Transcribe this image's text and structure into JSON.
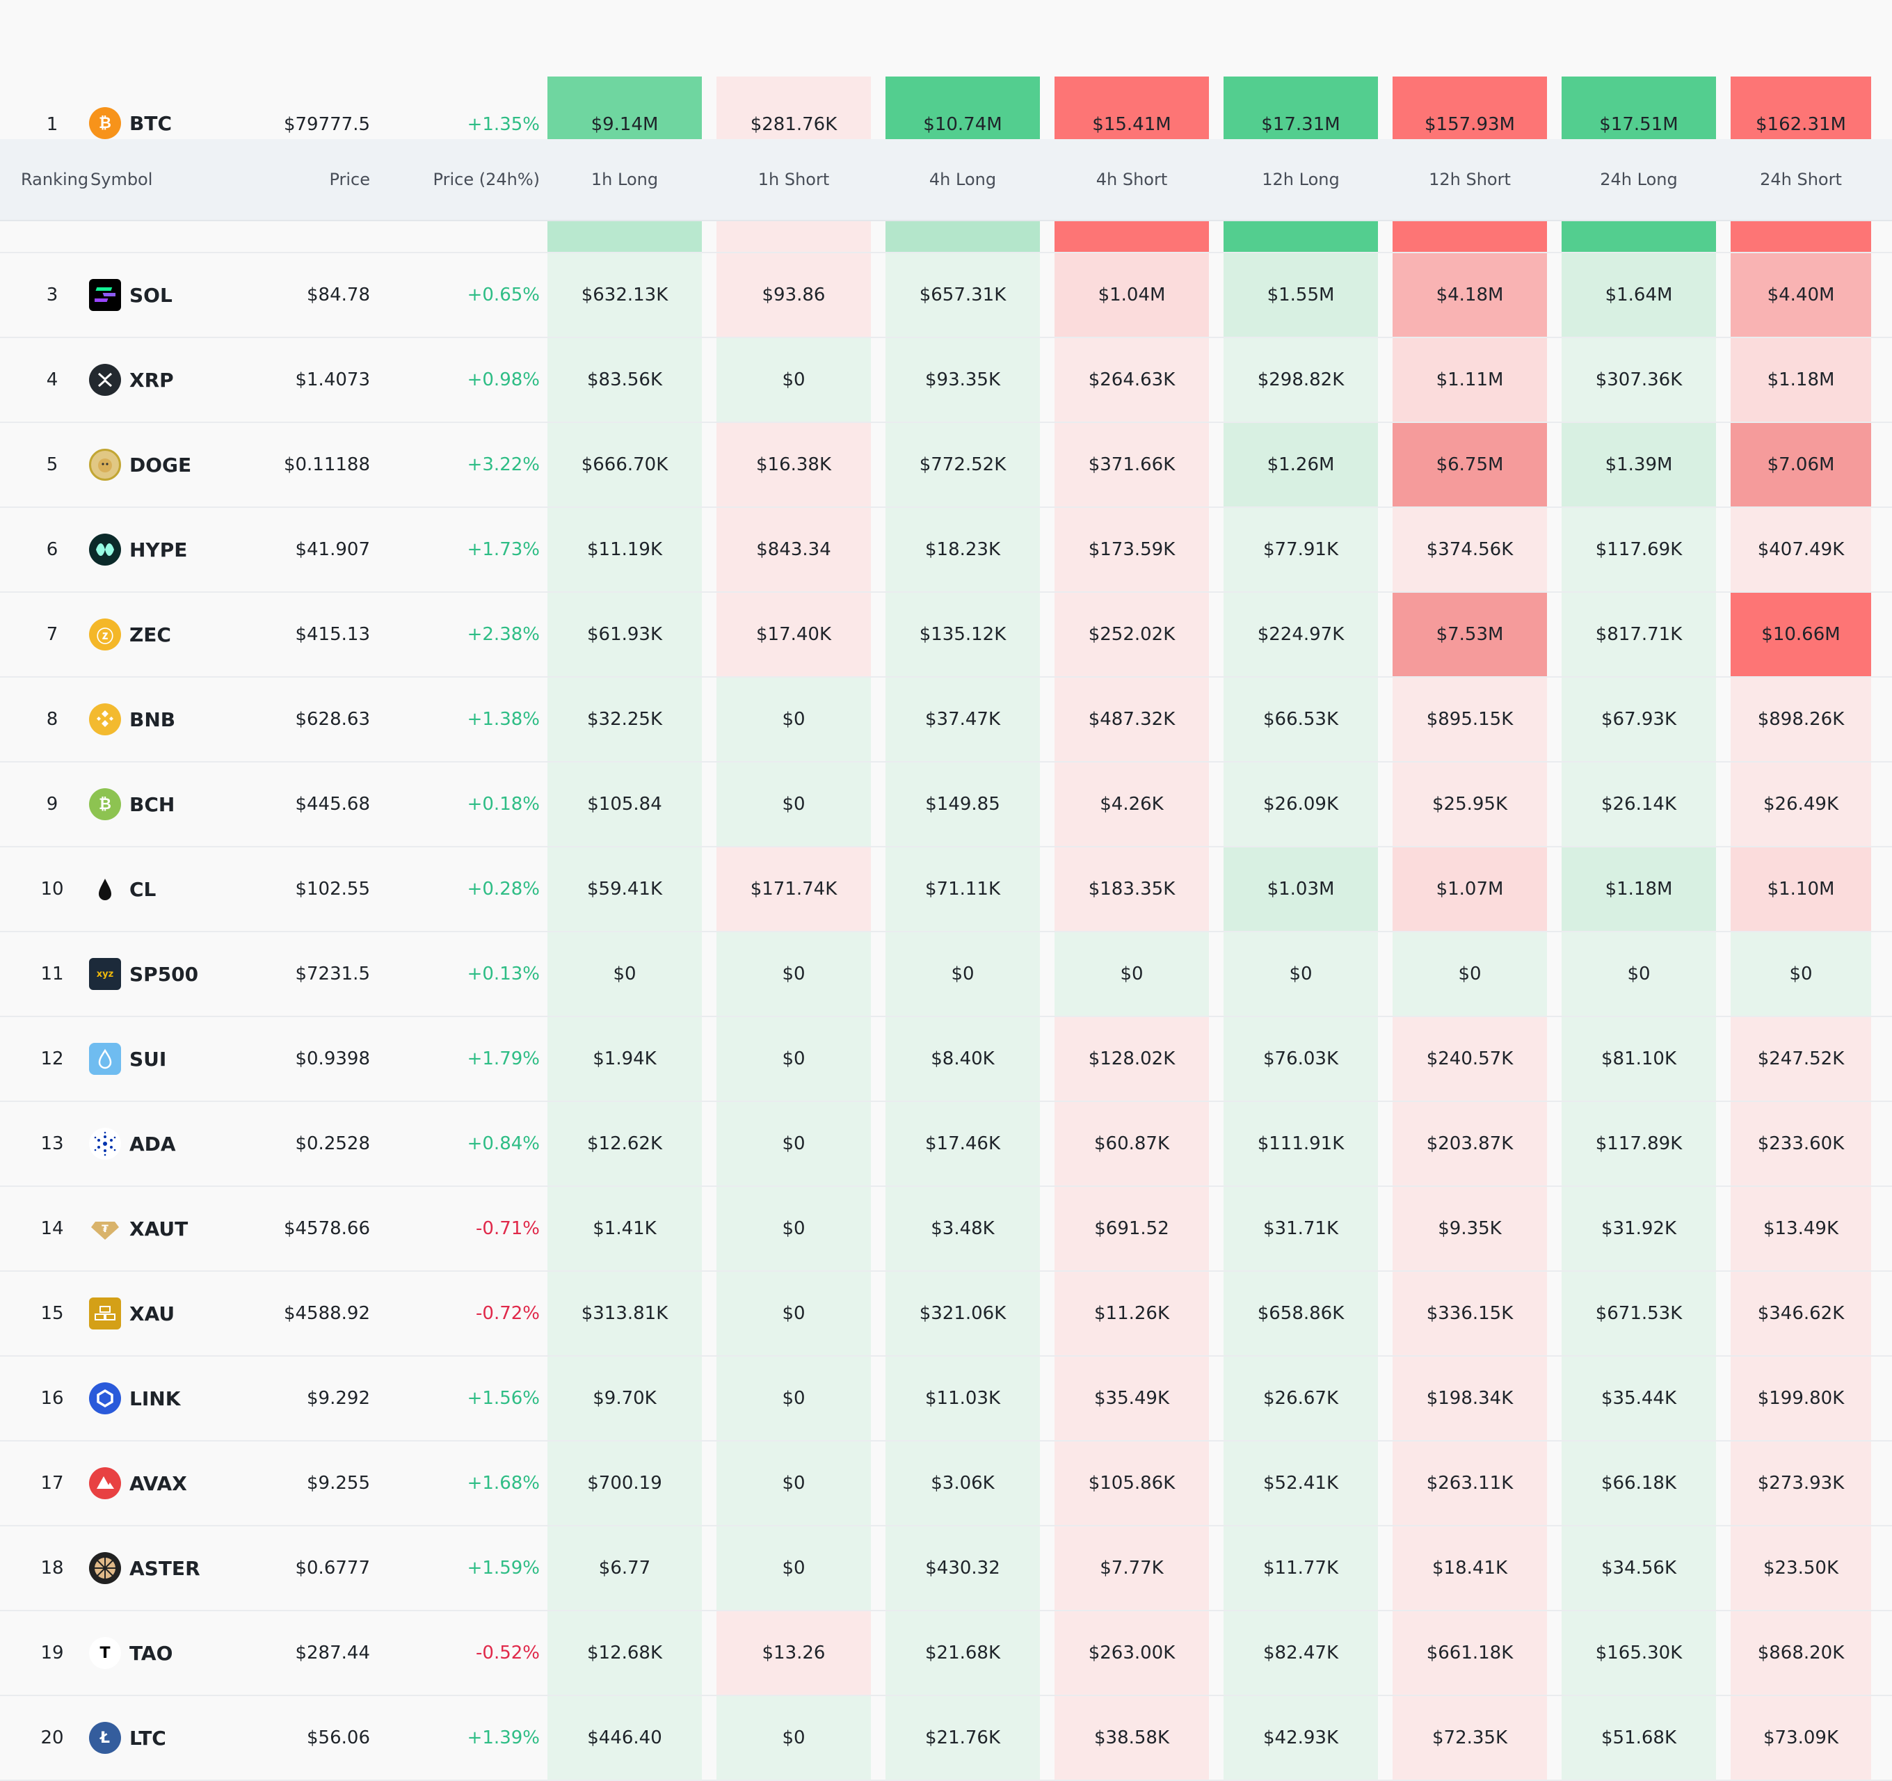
{
  "headers": {
    "ranking": "Ranking",
    "symbol": "Symbol",
    "price": "Price",
    "change": "Price (24h%)",
    "h1_long": "1h Long",
    "h1_short": "1h Short",
    "h4_long": "4h Long",
    "h4_short": "4h Short",
    "h12_long": "12h Long",
    "h12_short": "12h Short",
    "h24_long": "24h Long",
    "h24_short": "24h Short"
  },
  "colors": {
    "long_strong": "#53ce8f",
    "long_mid": "#b9e8cf",
    "long_light": "#e6f4ec",
    "short_strong": "#fd7575",
    "short_mid": "#f9b3b3",
    "short_light": "#fbe8e8"
  },
  "rows": [
    {
      "rank": "1",
      "symbol": "BTC",
      "icon": "bitcoin-icon",
      "price": "$79777.5",
      "change": "+1.35%",
      "values": [
        "$9.14M",
        "$281.76K",
        "$10.74M",
        "$15.41M",
        "$17.31M",
        "$157.93M",
        "$17.51M",
        "$162.31M"
      ]
    },
    {
      "rank": "3",
      "symbol": "SOL",
      "icon": "solana-icon",
      "price": "$84.78",
      "change": "+0.65%",
      "values": [
        "$632.13K",
        "$93.86",
        "$657.31K",
        "$1.04M",
        "$1.55M",
        "$4.18M",
        "$1.64M",
        "$4.40M"
      ]
    },
    {
      "rank": "4",
      "symbol": "XRP",
      "icon": "xrp-icon",
      "price": "$1.4073",
      "change": "+0.98%",
      "values": [
        "$83.56K",
        "$0",
        "$93.35K",
        "$264.63K",
        "$298.82K",
        "$1.11M",
        "$307.36K",
        "$1.18M"
      ]
    },
    {
      "rank": "5",
      "symbol": "DOGE",
      "icon": "doge-icon",
      "price": "$0.11188",
      "change": "+3.22%",
      "values": [
        "$666.70K",
        "$16.38K",
        "$772.52K",
        "$371.66K",
        "$1.26M",
        "$6.75M",
        "$1.39M",
        "$7.06M"
      ]
    },
    {
      "rank": "6",
      "symbol": "HYPE",
      "icon": "hype-icon",
      "price": "$41.907",
      "change": "+1.73%",
      "values": [
        "$11.19K",
        "$843.34",
        "$18.23K",
        "$173.59K",
        "$77.91K",
        "$374.56K",
        "$117.69K",
        "$407.49K"
      ]
    },
    {
      "rank": "7",
      "symbol": "ZEC",
      "icon": "zcash-icon",
      "price": "$415.13",
      "change": "+2.38%",
      "values": [
        "$61.93K",
        "$17.40K",
        "$135.12K",
        "$252.02K",
        "$224.97K",
        "$7.53M",
        "$817.71K",
        "$10.66M"
      ]
    },
    {
      "rank": "8",
      "symbol": "BNB",
      "icon": "bnb-icon",
      "price": "$628.63",
      "change": "+1.38%",
      "values": [
        "$32.25K",
        "$0",
        "$37.47K",
        "$487.32K",
        "$66.53K",
        "$895.15K",
        "$67.93K",
        "$898.26K"
      ]
    },
    {
      "rank": "9",
      "symbol": "BCH",
      "icon": "bitcoin-cash-icon",
      "price": "$445.68",
      "change": "+0.18%",
      "values": [
        "$105.84",
        "$0",
        "$149.85",
        "$4.26K",
        "$26.09K",
        "$25.95K",
        "$26.14K",
        "$26.49K"
      ]
    },
    {
      "rank": "10",
      "symbol": "CL",
      "icon": "oil-drop-icon",
      "price": "$102.55",
      "change": "+0.28%",
      "values": [
        "$59.41K",
        "$171.74K",
        "$71.11K",
        "$183.35K",
        "$1.03M",
        "$1.07M",
        "$1.18M",
        "$1.10M"
      ]
    },
    {
      "rank": "11",
      "symbol": "SP500",
      "icon": "sp500-icon",
      "icon_text": "xyz",
      "price": "$7231.5",
      "change": "+0.13%",
      "values": [
        "$0",
        "$0",
        "$0",
        "$0",
        "$0",
        "$0",
        "$0",
        "$0"
      ]
    },
    {
      "rank": "12",
      "symbol": "SUI",
      "icon": "sui-drop-icon",
      "price": "$0.9398",
      "change": "+1.79%",
      "values": [
        "$1.94K",
        "$0",
        "$8.40K",
        "$128.02K",
        "$76.03K",
        "$240.57K",
        "$81.10K",
        "$247.52K"
      ]
    },
    {
      "rank": "13",
      "symbol": "ADA",
      "icon": "cardano-icon",
      "price": "$0.2528",
      "change": "+0.84%",
      "values": [
        "$12.62K",
        "$0",
        "$17.46K",
        "$60.87K",
        "$111.91K",
        "$203.87K",
        "$117.89K",
        "$233.60K"
      ]
    },
    {
      "rank": "14",
      "symbol": "XAUT",
      "icon": "tether-gold-icon",
      "price": "$4578.66",
      "change": "-0.71%",
      "values": [
        "$1.41K",
        "$0",
        "$3.48K",
        "$691.52",
        "$31.71K",
        "$9.35K",
        "$31.92K",
        "$13.49K"
      ]
    },
    {
      "rank": "15",
      "symbol": "XAU",
      "icon": "gold-bars-icon",
      "price": "$4588.92",
      "change": "-0.72%",
      "values": [
        "$313.81K",
        "$0",
        "$321.06K",
        "$11.26K",
        "$658.86K",
        "$336.15K",
        "$671.53K",
        "$346.62K"
      ]
    },
    {
      "rank": "16",
      "symbol": "LINK",
      "icon": "chainlink-icon",
      "price": "$9.292",
      "change": "+1.56%",
      "values": [
        "$9.70K",
        "$0",
        "$11.03K",
        "$35.49K",
        "$26.67K",
        "$198.34K",
        "$35.44K",
        "$199.80K"
      ]
    },
    {
      "rank": "17",
      "symbol": "AVAX",
      "icon": "avalanche-icon",
      "price": "$9.255",
      "change": "+1.68%",
      "values": [
        "$700.19",
        "$0",
        "$3.06K",
        "$105.86K",
        "$52.41K",
        "$263.11K",
        "$66.18K",
        "$273.93K"
      ]
    },
    {
      "rank": "18",
      "symbol": "ASTER",
      "icon": "aster-icon",
      "price": "$0.6777",
      "change": "+1.59%",
      "values": [
        "$6.77",
        "$0",
        "$430.32",
        "$7.77K",
        "$11.77K",
        "$18.41K",
        "$34.56K",
        "$23.50K"
      ]
    },
    {
      "rank": "19",
      "symbol": "TAO",
      "icon": "bittensor-icon",
      "icon_text": "T",
      "price": "$287.44",
      "change": "-0.52%",
      "values": [
        "$12.68K",
        "$13.26",
        "$21.68K",
        "$263.00K",
        "$82.47K",
        "$661.18K",
        "$165.30K",
        "$868.20K"
      ]
    },
    {
      "rank": "20",
      "symbol": "LTC",
      "icon": "litecoin-icon",
      "icon_text": "Ł",
      "price": "$56.06",
      "change": "+1.39%",
      "values": [
        "$446.40",
        "$0",
        "$21.76K",
        "$38.58K",
        "$42.93K",
        "$72.35K",
        "$51.68K",
        "$73.09K"
      ]
    }
  ]
}
